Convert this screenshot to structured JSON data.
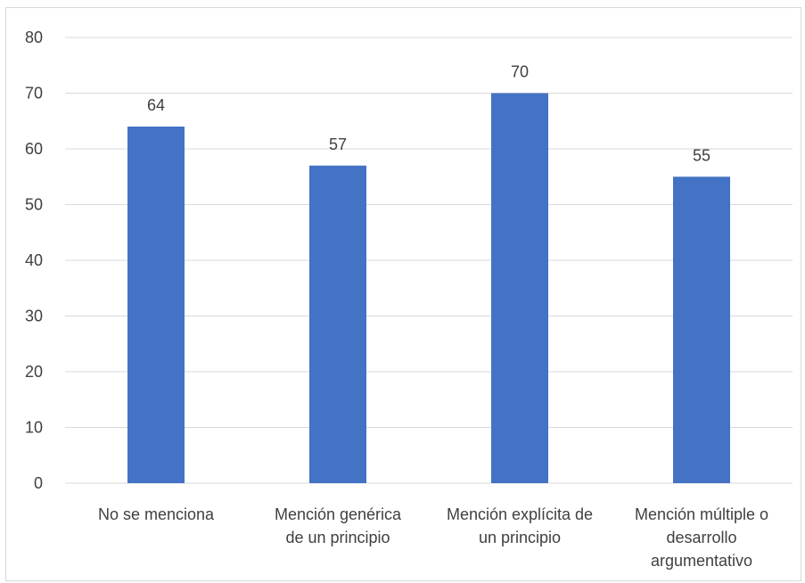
{
  "chart_data": {
    "type": "bar",
    "title": "",
    "xlabel": "",
    "ylabel": "",
    "categories": [
      [
        "No se menciona"
      ],
      [
        "Mención genérica",
        "de un principio"
      ],
      [
        "Mención explícita de",
        "un principio"
      ],
      [
        "Mención múltiple o",
        "desarrollo",
        "argumentativo"
      ]
    ],
    "values": [
      64,
      57,
      70,
      55
    ],
    "data_labels": [
      "64",
      "57",
      "70",
      "55"
    ],
    "ylim": [
      0,
      80
    ],
    "yticks": [
      "0",
      "10",
      "20",
      "30",
      "40",
      "50",
      "60",
      "70",
      "80"
    ],
    "grid": true,
    "legend": "none",
    "bar_color": "#4472C4"
  }
}
